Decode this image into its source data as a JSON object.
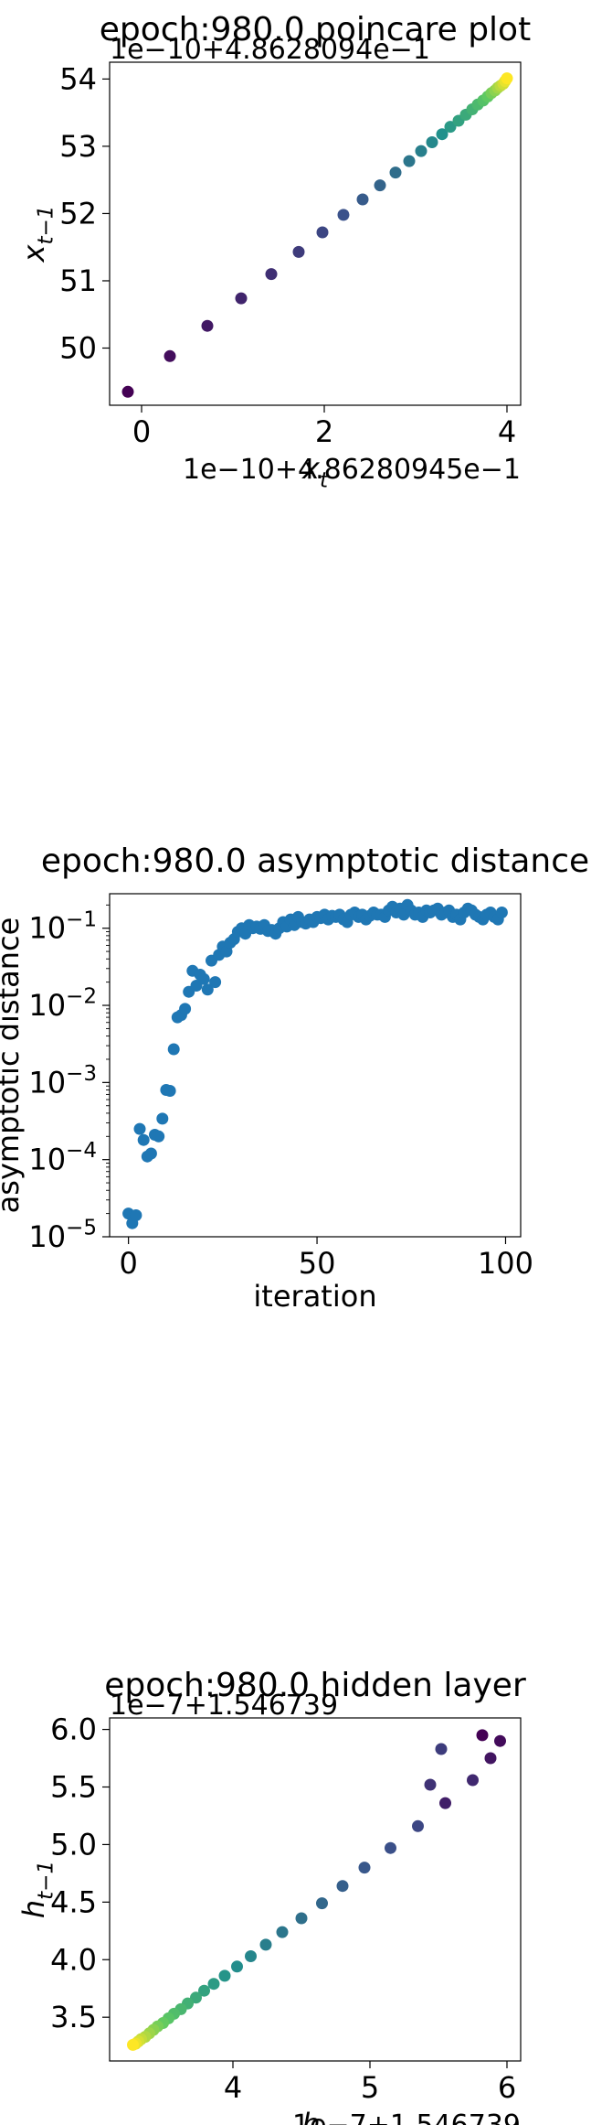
{
  "chart_data": [
    {
      "type": "scatter",
      "title": "epoch:980.0 poincare plot",
      "xlabel": "x_t",
      "ylabel": "x_{t-1}",
      "x_offset_label": "1e−10+4.86280945e−1",
      "y_offset_label": "1e−10+4.8628094e−1",
      "xlim": [
        -0.35,
        4.15
      ],
      "ylim": [
        49.15,
        54.25
      ],
      "xticks": [
        0,
        2,
        4
      ],
      "yticks": [
        50,
        51,
        52,
        53,
        54
      ],
      "colormap": "viridis",
      "points": {
        "x": [
          -0.15,
          0.31,
          0.72,
          1.09,
          1.42,
          1.72,
          1.98,
          2.21,
          2.42,
          2.61,
          2.78,
          2.93,
          3.06,
          3.18,
          3.29,
          3.38,
          3.47,
          3.55,
          3.62,
          3.68,
          3.74,
          3.79,
          3.83,
          3.87,
          3.9,
          3.93,
          3.96,
          3.98,
          4.0
        ],
        "y": [
          49.35,
          49.88,
          50.33,
          50.74,
          51.1,
          51.43,
          51.72,
          51.98,
          52.21,
          52.42,
          52.61,
          52.78,
          52.93,
          53.06,
          53.18,
          53.29,
          53.38,
          53.47,
          53.55,
          53.62,
          53.68,
          53.74,
          53.79,
          53.83,
          53.87,
          53.9,
          53.93,
          53.97,
          54.01
        ]
      }
    },
    {
      "type": "scatter",
      "title": "epoch:980.0 asymptotic distance",
      "xlabel": "iteration",
      "ylabel": "asymptotic distance",
      "xlim": [
        -5,
        104
      ],
      "ylim": [
        1e-05,
        0.28
      ],
      "yscale": "log",
      "xticks": [
        0,
        50,
        100
      ],
      "yticks": [
        1e-05,
        0.0001,
        0.001,
        0.01,
        0.1
      ],
      "ytick_labels": [
        "10^-5",
        "10^-4",
        "10^-3",
        "10^-2",
        "10^-1"
      ],
      "color": "#1f77b4",
      "points": {
        "x": [
          0,
          1,
          2,
          3,
          4,
          5,
          6,
          7,
          8,
          9,
          10,
          11,
          12,
          13,
          14,
          15,
          16,
          17,
          18,
          19,
          20,
          21,
          22,
          23,
          24,
          25,
          26,
          27,
          28,
          29,
          30,
          31,
          32,
          33,
          34,
          35,
          36,
          37,
          38,
          39,
          40,
          41,
          42,
          43,
          44,
          45,
          46,
          47,
          48,
          49,
          50,
          51,
          52,
          53,
          54,
          55,
          56,
          57,
          58,
          59,
          60,
          61,
          62,
          63,
          64,
          65,
          66,
          67,
          68,
          69,
          70,
          71,
          72,
          73,
          74,
          75,
          76,
          77,
          78,
          79,
          80,
          81,
          82,
          83,
          84,
          85,
          86,
          87,
          88,
          89,
          90,
          91,
          92,
          93,
          94,
          95,
          96,
          97,
          98,
          99
        ],
        "y": [
          2e-05,
          1.5e-05,
          1.9e-05,
          0.00025,
          0.00018,
          0.00011,
          0.00012,
          0.00021,
          0.0002,
          0.00034,
          0.0008,
          0.00078,
          0.0027,
          0.007,
          0.0075,
          0.009,
          0.015,
          0.028,
          0.018,
          0.025,
          0.022,
          0.016,
          0.038,
          0.02,
          0.045,
          0.058,
          0.05,
          0.065,
          0.072,
          0.09,
          0.1,
          0.085,
          0.11,
          0.1,
          0.105,
          0.098,
          0.11,
          0.092,
          0.095,
          0.085,
          0.1,
          0.12,
          0.105,
          0.13,
          0.11,
          0.14,
          0.12,
          0.115,
          0.13,
          0.12,
          0.14,
          0.135,
          0.15,
          0.13,
          0.145,
          0.14,
          0.15,
          0.13,
          0.12,
          0.15,
          0.16,
          0.14,
          0.15,
          0.13,
          0.145,
          0.16,
          0.15,
          0.15,
          0.14,
          0.17,
          0.19,
          0.16,
          0.18,
          0.15,
          0.2,
          0.17,
          0.15,
          0.16,
          0.14,
          0.17,
          0.16,
          0.17,
          0.18,
          0.15,
          0.16,
          0.17,
          0.14,
          0.15,
          0.13,
          0.16,
          0.18,
          0.17,
          0.15,
          0.14,
          0.13,
          0.15,
          0.16,
          0.14,
          0.13,
          0.16
        ]
      }
    },
    {
      "type": "scatter",
      "title": "epoch:980.0 hidden layer",
      "xlabel": "h_t",
      "ylabel": "h_{t-1}",
      "x_offset_label": "1e−7+1.546739",
      "y_offset_label": "1e−7+1.546739",
      "xlim": [
        3.1,
        6.1
      ],
      "ylim": [
        3.12,
        6.1
      ],
      "xticks": [
        4,
        5,
        6
      ],
      "yticks": [
        3.5,
        4.0,
        4.5,
        5.0,
        5.5,
        6.0
      ],
      "ytick_labels": [
        "3.5",
        "4.0",
        "4.5",
        "5.0",
        "5.5",
        "6.0"
      ],
      "colormap": "viridis",
      "points": {
        "x": [
          5.82,
          5.95,
          5.88,
          5.55,
          5.75,
          5.44,
          5.52,
          5.35,
          5.15,
          4.96,
          4.8,
          4.65,
          4.5,
          4.36,
          4.24,
          4.13,
          4.03,
          3.94,
          3.86,
          3.79,
          3.73,
          3.67,
          3.62,
          3.57,
          3.53,
          3.49,
          3.45,
          3.42,
          3.39,
          3.36,
          3.33,
          3.31,
          3.29,
          3.27
        ],
        "y": [
          5.95,
          5.9,
          5.75,
          5.36,
          5.56,
          5.52,
          5.83,
          5.16,
          4.97,
          4.8,
          4.64,
          4.49,
          4.36,
          4.24,
          4.13,
          4.03,
          3.94,
          3.86,
          3.79,
          3.73,
          3.67,
          3.62,
          3.57,
          3.53,
          3.49,
          3.45,
          3.42,
          3.39,
          3.36,
          3.33,
          3.31,
          3.29,
          3.27,
          3.26
        ]
      }
    }
  ]
}
